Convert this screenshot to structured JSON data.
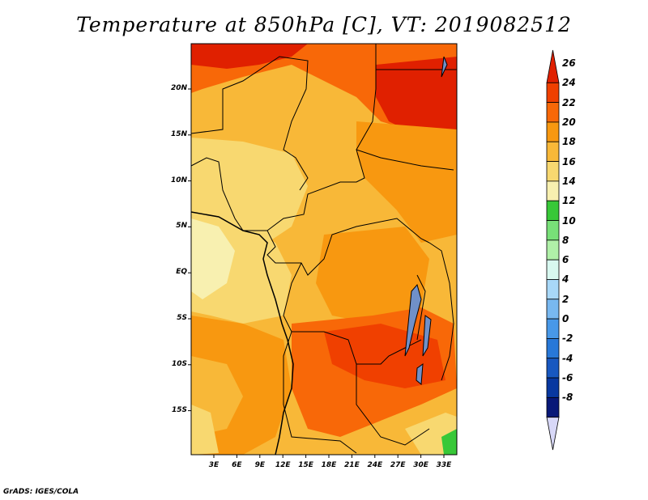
{
  "title": "Temperature at 850hPa [C], VT: 2019082512",
  "credit": "GrADS: IGES/COLA",
  "map": {
    "lat_labels": [
      "20N",
      "15N",
      "10N",
      "5N",
      "EQ",
      "5S",
      "10S",
      "15S"
    ],
    "lon_labels": [
      "3E",
      "6E",
      "9E",
      "12E",
      "15E",
      "18E",
      "21E",
      "24E",
      "27E",
      "30E",
      "33E"
    ]
  },
  "colorbar": {
    "labels": [
      "26",
      "24",
      "22",
      "20",
      "18",
      "16",
      "14",
      "12",
      "10",
      "8",
      "6",
      "4",
      "2",
      "0",
      "-2",
      "-4",
      "-6",
      "-8"
    ],
    "colors": [
      "#e02000",
      "#f04000",
      "#f86808",
      "#f89810",
      "#f8b838",
      "#f8d870",
      "#f8f0b0",
      "#38c838",
      "#78e078",
      "#b0f0a8",
      "#d8f8f0",
      "#a8d8f8",
      "#78b8f0",
      "#4898e8",
      "#2878d8",
      "#1858c0",
      "#0838a0",
      "#081878",
      "#000050"
    ]
  }
}
